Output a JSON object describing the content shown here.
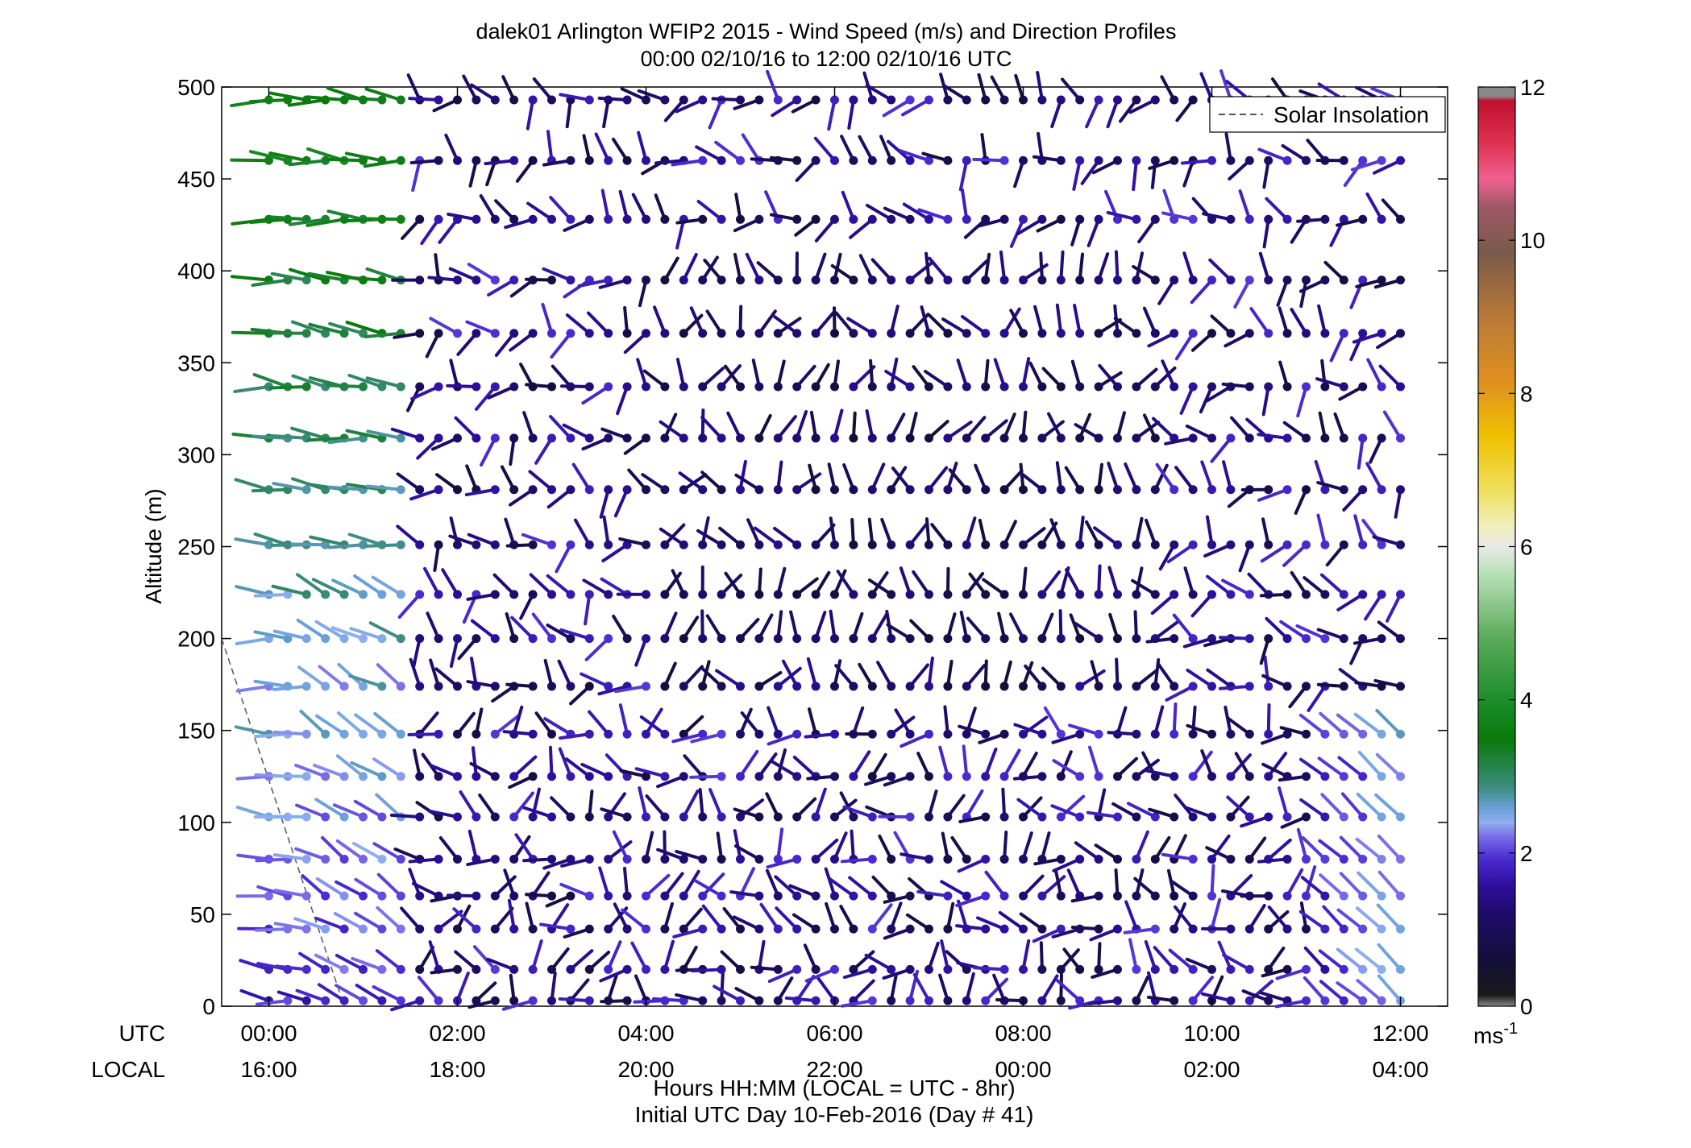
{
  "chart_data": {
    "type": "wind-barb-profile",
    "title": "dalek01 Arlington WFIP2 2015 - Wind Speed (m/s) and Direction Profiles",
    "subtitle": "00:00 02/10/16 to 12:00 02/10/16  UTC",
    "ylabel": "Altitude (m)",
    "xlabel": "Hours HH:MM  (LOCAL = UTC - 8hr)",
    "xlabel2": "Initial UTC Day 10-Feb-2016 (Day # 41)",
    "row_label_utc": "UTC",
    "row_label_local": "LOCAL",
    "ylim": [
      0,
      500
    ],
    "xlim_hours": [
      -0.5,
      12.5
    ],
    "yticks": [
      "0",
      "50",
      "100",
      "150",
      "200",
      "250",
      "300",
      "350",
      "400",
      "450",
      "500"
    ],
    "xticks_utc": [
      "00:00",
      "02:00",
      "04:00",
      "06:00",
      "08:00",
      "10:00",
      "12:00"
    ],
    "xticks_local": [
      "16:00",
      "18:00",
      "20:00",
      "22:00",
      "00:00",
      "02:00",
      "04:00"
    ],
    "grid": false,
    "legend": {
      "position": "top-right",
      "entries": [
        "Solar Insolation"
      ]
    },
    "colorbar": {
      "label": "ms",
      "label_exp": "-1",
      "range": [
        0,
        12
      ],
      "ticks": [
        "0",
        "2",
        "4",
        "6",
        "8",
        "10",
        "12"
      ]
    },
    "times_hours_start": 0,
    "times_hours_step": 0.2,
    "times_count": 61,
    "altitudes": [
      3,
      20,
      42,
      60,
      80,
      103,
      125,
      148,
      174,
      200,
      224,
      251,
      281,
      309,
      337,
      366,
      395,
      428,
      460,
      493
    ],
    "solar_insolation": {
      "x": [
        -0.5,
        0.8
      ],
      "y": [
        200,
        0
      ]
    },
    "field_description": "Wind speed 0-3 m/s mostly (dark purple), 2-4 m/s near 00:00-01:30 upper levels, lighter blue near 11:30-12:00 low levels"
  },
  "colors": {
    "colormap": [
      "#1a1a1a",
      "#140f4a",
      "#2d0d8a",
      "#3d1ab8",
      "#5a3dd9",
      "#7a6fe8",
      "#8fb0f0",
      "#5aa6a6",
      "#1a8c1a",
      "#1a6b1a",
      "#4fa04f",
      "#9ed09e",
      "#dcdcdc",
      "#f0e070",
      "#e0b020",
      "#c08030",
      "#8a6040",
      "#a05060",
      "#e04070",
      "#d02040",
      "#c01030",
      "#888888"
    ],
    "axis": "#000000",
    "insolation_line": "#555555"
  }
}
